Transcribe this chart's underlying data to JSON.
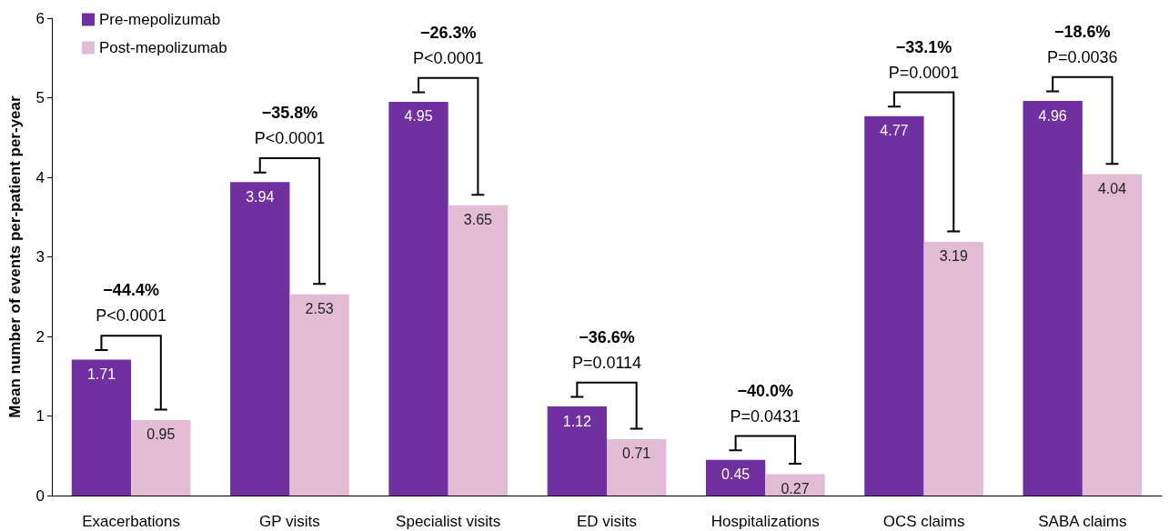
{
  "chart_data": {
    "type": "bar",
    "ylabel": "Mean number of events per-patient per-year",
    "categories": [
      "Exacerbations",
      "GP visits",
      "Specialist visits",
      "ED visits",
      "Hospitalizations",
      "OCS claims",
      "SABA claims"
    ],
    "series": [
      {
        "name": "Pre-mepolizumab",
        "color": "#7030a0",
        "values": [
          1.71,
          3.94,
          4.95,
          1.12,
          0.45,
          4.77,
          4.96
        ]
      },
      {
        "name": "Post-mepolizumab",
        "color": "#e2bcd4",
        "values": [
          0.95,
          2.53,
          3.65,
          0.71,
          0.27,
          3.19,
          4.04
        ]
      }
    ],
    "ylim": [
      0,
      6
    ],
    "yticks": [
      0,
      1,
      2,
      3,
      4,
      5,
      6
    ],
    "data_labels": true,
    "legend": "top left",
    "grid": false,
    "annotations": [
      "−44.4%",
      "P<0.0001",
      "−35.8%",
      "P<0.0001",
      "−26.3%",
      "P<0.0001",
      "−36.6%",
      "P=0.0114",
      "−40.0%",
      "P=0.0431",
      "−33.1%",
      "P=0.0001",
      "−18.6%",
      "P=0.0036"
    ]
  }
}
